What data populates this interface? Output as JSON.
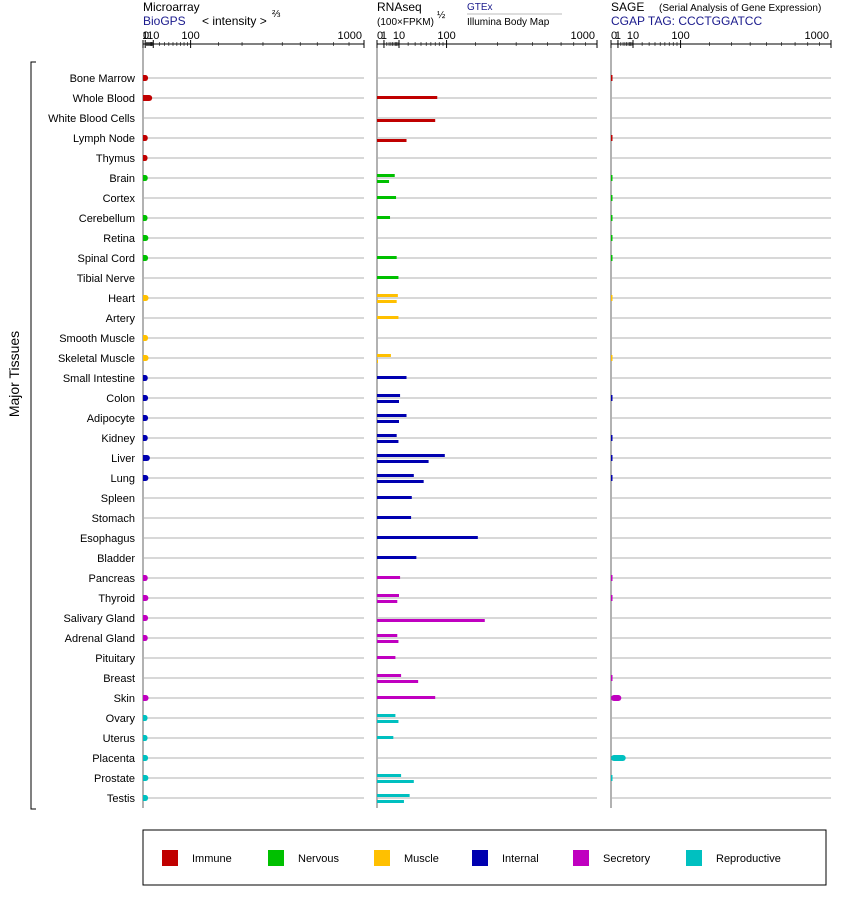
{
  "chart_data": {
    "type": "bar",
    "ylabel": "Major Tissues",
    "panels": [
      {
        "id": "microarray",
        "title": "Microarray",
        "subtitle": "BioGPS",
        "scale_label": "< intensity >",
        "scale_exp": "⅔",
        "ticks": [
          "0",
          "1",
          "10",
          "100",
          "1000"
        ]
      },
      {
        "id": "rnaseq",
        "title": "RNAseq",
        "scale_label": "(100×FPKM)",
        "scale_exp": "½",
        "source1": "GTEx",
        "source2": "Illumina Body Map",
        "ticks": [
          "0",
          "1",
          "10",
          "100",
          "1000"
        ]
      },
      {
        "id": "sage",
        "title": "SAGE",
        "title_note": "(Serial Analysis of Gene Expression)",
        "subtitle": "CGAP TAG: CCCTGGATCC",
        "ticks": [
          "0",
          "1",
          "10",
          "100",
          "1000"
        ]
      }
    ],
    "groups": [
      {
        "name": "Immune",
        "color": "#c00000"
      },
      {
        "name": "Nervous",
        "color": "#00c000"
      },
      {
        "name": "Muscle",
        "color": "#ffc000"
      },
      {
        "name": "Internal",
        "color": "#0000b0"
      },
      {
        "name": "Secretory",
        "color": "#c000c0"
      },
      {
        "name": "Reproductive",
        "color": "#00c0c0"
      }
    ],
    "tissues": [
      {
        "name": "Bone Marrow",
        "group": "Immune",
        "microarray": 3.5,
        "gtex": null,
        "ibm": null,
        "sage": 0.02
      },
      {
        "name": "Whole Blood",
        "group": "Immune",
        "microarray": 8.5,
        "gtex": 75,
        "ibm": null,
        "sage": null
      },
      {
        "name": "White Blood Cells",
        "group": "Immune",
        "microarray": null,
        "gtex": null,
        "ibm": 70,
        "sage": null
      },
      {
        "name": "Lymph Node",
        "group": "Immune",
        "microarray": 3.2,
        "gtex": null,
        "ibm": 18,
        "sage": 0.02
      },
      {
        "name": "Thymus",
        "group": "Immune",
        "microarray": 3.0,
        "gtex": null,
        "ibm": null,
        "sage": null
      },
      {
        "name": "Brain",
        "group": "Nervous",
        "microarray": 3.2,
        "gtex": 6.5,
        "ibm": 3.0,
        "sage": 0.02
      },
      {
        "name": "Cortex",
        "group": "Nervous",
        "microarray": null,
        "gtex": 7.5,
        "ibm": null,
        "sage": 0.01
      },
      {
        "name": "Cerebellum",
        "group": "Nervous",
        "microarray": 3.0,
        "gtex": 3.5,
        "ibm": null,
        "sage": 0.01
      },
      {
        "name": "Retina",
        "group": "Nervous",
        "microarray": 3.8,
        "gtex": null,
        "ibm": null,
        "sage": 0.01
      },
      {
        "name": "Spinal Cord",
        "group": "Nervous",
        "microarray": 3.5,
        "gtex": 8.0,
        "ibm": null,
        "sage": 0.01
      },
      {
        "name": "Tibial Nerve",
        "group": "Nervous",
        "microarray": null,
        "gtex": 9.5,
        "ibm": null,
        "sage": null
      },
      {
        "name": "Heart",
        "group": "Muscle",
        "microarray": 4.0,
        "gtex": 9.0,
        "ibm": 8.0,
        "sage": 0.01
      },
      {
        "name": "Artery",
        "group": "Muscle",
        "microarray": null,
        "gtex": 9.5,
        "ibm": null,
        "sage": null
      },
      {
        "name": "Smooth Muscle",
        "group": "Muscle",
        "microarray": 3.5,
        "gtex": null,
        "ibm": null,
        "sage": null
      },
      {
        "name": "Skeletal Muscle",
        "group": "Muscle",
        "microarray": 4.0,
        "gtex": 4.0,
        "ibm": 0.02,
        "sage": 0.01
      },
      {
        "name": "Small Intestine",
        "group": "Internal",
        "microarray": 3.2,
        "gtex": 18,
        "ibm": null,
        "sage": null
      },
      {
        "name": "Colon",
        "group": "Internal",
        "microarray": 3.5,
        "gtex": 11,
        "ibm": 10,
        "sage": 0.02
      },
      {
        "name": "Adipocyte",
        "group": "Internal",
        "microarray": 3.5,
        "gtex": 18,
        "ibm": 10,
        "sage": null
      },
      {
        "name": "Kidney",
        "group": "Internal",
        "microarray": 3.2,
        "gtex": 8.0,
        "ibm": 9.5,
        "sage": 0.02
      },
      {
        "name": "Liver",
        "group": "Internal",
        "microarray": 5.5,
        "gtex": 95,
        "ibm": 55,
        "sage": 0.02
      },
      {
        "name": "Lung",
        "group": "Internal",
        "microarray": 3.8,
        "gtex": 28,
        "ibm": 45,
        "sage": 0.02
      },
      {
        "name": "Spleen",
        "group": "Internal",
        "microarray": null,
        "gtex": 25,
        "ibm": null,
        "sage": null
      },
      {
        "name": "Stomach",
        "group": "Internal",
        "microarray": null,
        "gtex": 24,
        "ibm": null,
        "sage": null
      },
      {
        "name": "Esophagus",
        "group": "Internal",
        "microarray": null,
        "gtex": 210,
        "ibm": null,
        "sage": null
      },
      {
        "name": "Bladder",
        "group": "Internal",
        "microarray": null,
        "gtex": 32,
        "ibm": null,
        "sage": null
      },
      {
        "name": "Pancreas",
        "group": "Secretory",
        "microarray": 3.2,
        "gtex": 11,
        "ibm": null,
        "sage": 0.02
      },
      {
        "name": "Thyroid",
        "group": "Secretory",
        "microarray": 3.8,
        "gtex": 10,
        "ibm": 8.5,
        "sage": 0.02
      },
      {
        "name": "Salivary Gland",
        "group": "Secretory",
        "microarray": 3.5,
        "gtex": null,
        "ibm": 240,
        "sage": null
      },
      {
        "name": "Adrenal Gland",
        "group": "Secretory",
        "microarray": 3.2,
        "gtex": 8.5,
        "ibm": 9.5,
        "sage": null
      },
      {
        "name": "Pituitary",
        "group": "Secretory",
        "microarray": null,
        "gtex": 7.0,
        "ibm": null,
        "sage": null
      },
      {
        "name": "Breast",
        "group": "Secretory",
        "microarray": null,
        "gtex": 12,
        "ibm": 35,
        "sage": 0.02
      },
      {
        "name": "Skin",
        "group": "Secretory",
        "microarray": 4.0,
        "gtex": 70,
        "ibm": null,
        "sage": 2.2
      },
      {
        "name": "Ovary",
        "group": "Reproductive",
        "microarray": 3.0,
        "gtex": 7.0,
        "ibm": 9.5,
        "sage": null
      },
      {
        "name": "Uterus",
        "group": "Reproductive",
        "microarray": 3.0,
        "gtex": 5.5,
        "ibm": null,
        "sage": null
      },
      {
        "name": "Placenta",
        "group": "Reproductive",
        "microarray": 3.5,
        "gtex": null,
        "ibm": null,
        "sage": 4.5
      },
      {
        "name": "Prostate",
        "group": "Reproductive",
        "microarray": 3.8,
        "gtex": 12,
        "ibm": 28,
        "sage": 0.01
      },
      {
        "name": "Testis",
        "group": "Reproductive",
        "microarray": 3.5,
        "gtex": 22,
        "ibm": 15,
        "sage": null
      }
    ]
  }
}
